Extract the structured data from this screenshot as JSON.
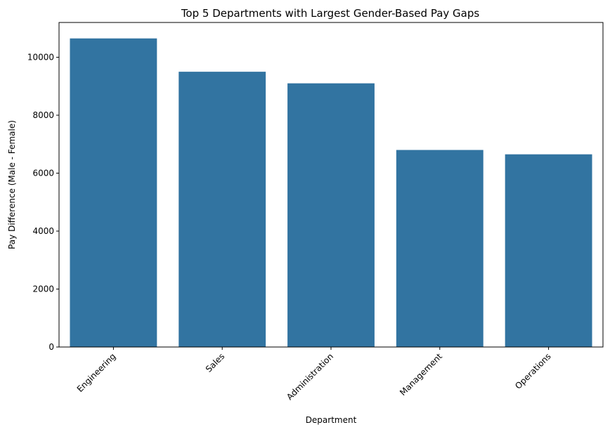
{
  "chart_data": {
    "type": "bar",
    "title": "Top 5 Departments with Largest Gender-Based Pay Gaps",
    "xlabel": "Department",
    "ylabel": "Pay Difference (Male - Female)",
    "categories": [
      "Engineering",
      "Sales",
      "Administration",
      "Management",
      "Operations"
    ],
    "values": [
      10650,
      9500,
      9100,
      6800,
      6650
    ],
    "ylim": [
      0,
      11200
    ],
    "yticks": [
      0,
      2000,
      4000,
      6000,
      8000,
      10000
    ],
    "bar_color": "#3274a1",
    "grid": false,
    "legend": "none"
  }
}
